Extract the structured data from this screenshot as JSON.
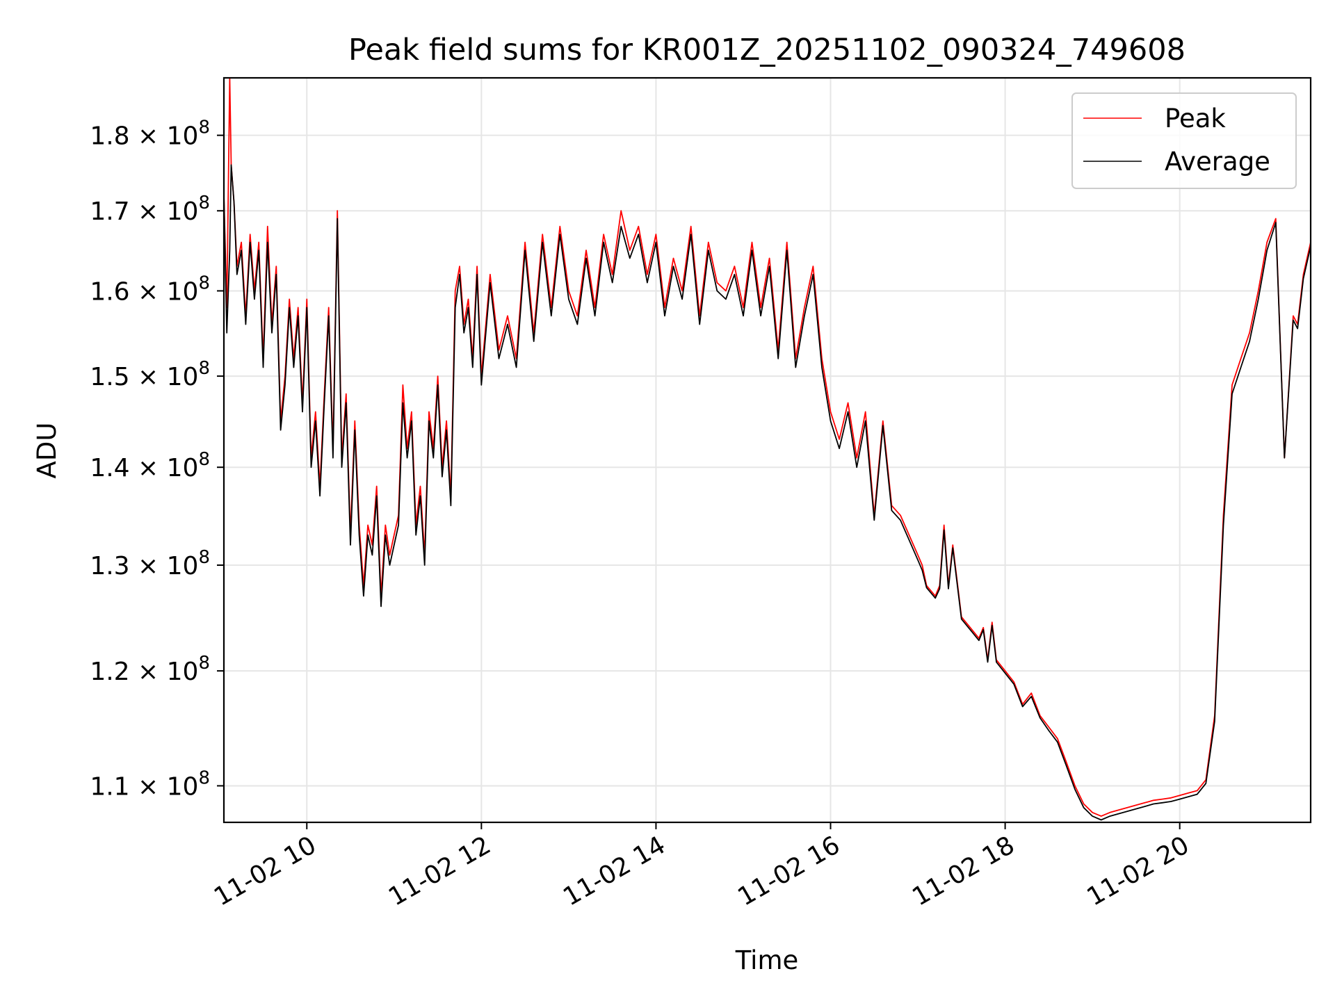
{
  "chart_data": {
    "type": "line",
    "title": "Peak field sums for KR001Z_20251102_090324_749608",
    "xlabel": "Time",
    "ylabel": "ADU",
    "y_scale": "log",
    "x_range": [
      "2025-11-02 09:03",
      "2025-11-02 21:30"
    ],
    "y_range": [
      107000000,
      188000000
    ],
    "grid": true,
    "legend_position": "upper right",
    "x_ticks": [
      {
        "value": "2025-11-02 10:00",
        "label": "11-02 10"
      },
      {
        "value": "2025-11-02 12:00",
        "label": "11-02 12"
      },
      {
        "value": "2025-11-02 14:00",
        "label": "11-02 14"
      },
      {
        "value": "2025-11-02 16:00",
        "label": "11-02 16"
      },
      {
        "value": "2025-11-02 18:00",
        "label": "11-02 18"
      },
      {
        "value": "2025-11-02 20:00",
        "label": "11-02 20"
      }
    ],
    "y_ticks": [
      {
        "value": 110000000,
        "mantissa": "1.1",
        "exponent": "8"
      },
      {
        "value": 120000000,
        "mantissa": "1.2",
        "exponent": "8"
      },
      {
        "value": 130000000,
        "mantissa": "1.3",
        "exponent": "8"
      },
      {
        "value": 140000000,
        "mantissa": "1.4",
        "exponent": "8"
      },
      {
        "value": 150000000,
        "mantissa": "1.5",
        "exponent": "8"
      },
      {
        "value": 160000000,
        "mantissa": "1.6",
        "exponent": "8"
      },
      {
        "value": 170000000,
        "mantissa": "1.7",
        "exponent": "8"
      },
      {
        "value": 180000000,
        "mantissa": "1.8",
        "exponent": "8"
      }
    ],
    "x": [
      "2025-11-02 09:03",
      "2025-11-02 09:05",
      "2025-11-02 09:07",
      "2025-11-02 09:08",
      "2025-11-02 09:10",
      "2025-11-02 09:12",
      "2025-11-02 09:15",
      "2025-11-02 09:18",
      "2025-11-02 09:21",
      "2025-11-02 09:24",
      "2025-11-02 09:27",
      "2025-11-02 09:30",
      "2025-11-02 09:33",
      "2025-11-02 09:36",
      "2025-11-02 09:39",
      "2025-11-02 09:42",
      "2025-11-02 09:45",
      "2025-11-02 09:48",
      "2025-11-02 09:51",
      "2025-11-02 09:54",
      "2025-11-02 09:57",
      "2025-11-02 10:00",
      "2025-11-02 10:03",
      "2025-11-02 10:06",
      "2025-11-02 10:09",
      "2025-11-02 10:12",
      "2025-11-02 10:15",
      "2025-11-02 10:18",
      "2025-11-02 10:21",
      "2025-11-02 10:24",
      "2025-11-02 10:27",
      "2025-11-02 10:30",
      "2025-11-02 10:33",
      "2025-11-02 10:36",
      "2025-11-02 10:39",
      "2025-11-02 10:42",
      "2025-11-02 10:45",
      "2025-11-02 10:48",
      "2025-11-02 10:51",
      "2025-11-02 10:54",
      "2025-11-02 10:57",
      "2025-11-02 11:00",
      "2025-11-02 11:03",
      "2025-11-02 11:06",
      "2025-11-02 11:09",
      "2025-11-02 11:12",
      "2025-11-02 11:15",
      "2025-11-02 11:18",
      "2025-11-02 11:21",
      "2025-11-02 11:24",
      "2025-11-02 11:27",
      "2025-11-02 11:30",
      "2025-11-02 11:33",
      "2025-11-02 11:36",
      "2025-11-02 11:39",
      "2025-11-02 11:42",
      "2025-11-02 11:45",
      "2025-11-02 11:48",
      "2025-11-02 11:51",
      "2025-11-02 11:54",
      "2025-11-02 11:57",
      "2025-11-02 12:00",
      "2025-11-02 12:06",
      "2025-11-02 12:12",
      "2025-11-02 12:18",
      "2025-11-02 12:24",
      "2025-11-02 12:30",
      "2025-11-02 12:36",
      "2025-11-02 12:42",
      "2025-11-02 12:48",
      "2025-11-02 12:54",
      "2025-11-02 13:00",
      "2025-11-02 13:06",
      "2025-11-02 13:12",
      "2025-11-02 13:18",
      "2025-11-02 13:24",
      "2025-11-02 13:30",
      "2025-11-02 13:36",
      "2025-11-02 13:42",
      "2025-11-02 13:48",
      "2025-11-02 13:54",
      "2025-11-02 14:00",
      "2025-11-02 14:06",
      "2025-11-02 14:12",
      "2025-11-02 14:18",
      "2025-11-02 14:24",
      "2025-11-02 14:30",
      "2025-11-02 14:36",
      "2025-11-02 14:42",
      "2025-11-02 14:48",
      "2025-11-02 14:54",
      "2025-11-02 15:00",
      "2025-11-02 15:06",
      "2025-11-02 15:12",
      "2025-11-02 15:18",
      "2025-11-02 15:24",
      "2025-11-02 15:30",
      "2025-11-02 15:36",
      "2025-11-02 15:42",
      "2025-11-02 15:48",
      "2025-11-02 15:54",
      "2025-11-02 16:00",
      "2025-11-02 16:06",
      "2025-11-02 16:12",
      "2025-11-02 16:18",
      "2025-11-02 16:24",
      "2025-11-02 16:30",
      "2025-11-02 16:36",
      "2025-11-02 16:42",
      "2025-11-02 16:48",
      "2025-11-02 16:54",
      "2025-11-02 17:00",
      "2025-11-02 17:03",
      "2025-11-02 17:06",
      "2025-11-02 17:09",
      "2025-11-02 17:12",
      "2025-11-02 17:15",
      "2025-11-02 17:18",
      "2025-11-02 17:21",
      "2025-11-02 17:24",
      "2025-11-02 17:30",
      "2025-11-02 17:36",
      "2025-11-02 17:42",
      "2025-11-02 17:45",
      "2025-11-02 17:48",
      "2025-11-02 17:51",
      "2025-11-02 17:54",
      "2025-11-02 18:00",
      "2025-11-02 18:06",
      "2025-11-02 18:12",
      "2025-11-02 18:18",
      "2025-11-02 18:24",
      "2025-11-02 18:30",
      "2025-11-02 18:36",
      "2025-11-02 18:42",
      "2025-11-02 18:48",
      "2025-11-02 18:54",
      "2025-11-02 19:00",
      "2025-11-02 19:06",
      "2025-11-02 19:12",
      "2025-11-02 19:18",
      "2025-11-02 19:24",
      "2025-11-02 19:30",
      "2025-11-02 19:36",
      "2025-11-02 19:42",
      "2025-11-02 19:48",
      "2025-11-02 19:54",
      "2025-11-02 20:00",
      "2025-11-02 20:06",
      "2025-11-02 20:12",
      "2025-11-02 20:18",
      "2025-11-02 20:24",
      "2025-11-02 20:30",
      "2025-11-02 20:36",
      "2025-11-02 20:42",
      "2025-11-02 20:48",
      "2025-11-02 20:54",
      "2025-11-02 21:00",
      "2025-11-02 21:06",
      "2025-11-02 21:12",
      "2025-11-02 21:18",
      "2025-11-02 21:21",
      "2025-11-02 21:23",
      "2025-11-02 21:25",
      "2025-11-02 21:30"
    ],
    "series": [
      {
        "name": "Peak",
        "color": "#ff0000",
        "values": [
          172000000,
          158000000,
          188000000,
          176000000,
          171000000,
          163000000,
          166000000,
          157000000,
          167000000,
          160000000,
          166000000,
          152000000,
          168000000,
          156000000,
          163000000,
          145000000,
          150000000,
          159000000,
          152000000,
          158000000,
          147000000,
          159000000,
          141000000,
          146000000,
          138000000,
          148000000,
          158000000,
          142000000,
          170000000,
          141000000,
          148000000,
          133000000,
          145000000,
          134000000,
          128000000,
          134000000,
          132000000,
          138000000,
          127000000,
          134000000,
          131000000,
          133000000,
          135000000,
          149000000,
          142000000,
          146000000,
          134000000,
          138000000,
          131000000,
          146000000,
          142000000,
          150000000,
          140000000,
          145000000,
          137000000,
          160000000,
          163000000,
          156000000,
          159000000,
          152000000,
          163000000,
          150000000,
          162000000,
          153000000,
          157000000,
          152000000,
          166000000,
          155000000,
          167000000,
          158000000,
          168000000,
          160000000,
          157000000,
          165000000,
          158000000,
          167000000,
          162000000,
          170000000,
          165000000,
          168000000,
          162000000,
          167000000,
          158000000,
          164000000,
          160000000,
          168000000,
          157000000,
          166000000,
          161000000,
          160000000,
          163000000,
          158000000,
          166000000,
          158000000,
          164000000,
          153000000,
          166000000,
          152000000,
          158000000,
          163000000,
          152000000,
          146000000,
          143000000,
          147000000,
          141000000,
          146000000,
          135000000,
          145000000,
          136000000,
          135000000,
          133000000,
          131000000,
          130000000,
          128000000,
          127500000,
          127000000,
          128000000,
          134000000,
          128000000,
          132000000,
          125000000,
          124000000,
          123000000,
          124000000,
          121000000,
          124500000,
          121000000,
          120000000,
          119000000,
          117000000,
          118000000,
          116000000,
          115000000,
          114000000,
          112000000,
          110000000,
          108500000,
          107800000,
          107500000,
          107800000,
          108000000,
          108200000,
          108400000,
          108600000,
          108800000,
          108900000,
          109000000,
          109200000,
          109400000,
          109600000,
          110500000,
          116000000,
          135000000,
          149000000,
          152000000,
          155000000,
          160000000,
          166000000,
          169000000,
          141000000,
          157000000,
          156000000,
          159000000,
          162000000,
          166000000
        ]
      },
      {
        "name": "Average",
        "color": "#000000",
        "values": [
          172000000,
          155000000,
          165000000,
          176000000,
          171000000,
          162000000,
          165000000,
          156000000,
          166000000,
          159000000,
          165000000,
          151000000,
          166000000,
          155000000,
          162000000,
          144000000,
          149000000,
          158000000,
          151000000,
          157000000,
          146000000,
          158000000,
          140000000,
          145000000,
          137000000,
          147000000,
          157000000,
          141000000,
          169000000,
          140000000,
          147000000,
          132000000,
          144000000,
          133000000,
          127000000,
          133000000,
          131000000,
          137000000,
          126000000,
          133000000,
          130000000,
          132000000,
          134000000,
          147000000,
          141000000,
          145000000,
          133000000,
          137000000,
          130000000,
          145000000,
          141000000,
          149000000,
          139000000,
          144000000,
          136000000,
          158000000,
          162000000,
          155000000,
          158000000,
          151000000,
          162000000,
          149000000,
          161000000,
          152000000,
          156000000,
          151000000,
          165000000,
          154000000,
          166000000,
          157000000,
          167000000,
          159000000,
          156000000,
          164000000,
          157000000,
          166000000,
          161000000,
          168000000,
          164000000,
          167000000,
          161000000,
          166000000,
          157000000,
          163000000,
          159000000,
          167000000,
          156000000,
          165000000,
          160000000,
          159000000,
          162000000,
          157000000,
          165000000,
          157000000,
          163000000,
          152000000,
          165000000,
          151000000,
          157000000,
          162000000,
          151000000,
          145000000,
          142000000,
          146000000,
          140000000,
          145000000,
          134500000,
          144500000,
          135500000,
          134500000,
          132500000,
          130500000,
          129500000,
          127800000,
          127300000,
          126800000,
          127700000,
          133500000,
          127700000,
          131700000,
          124800000,
          123800000,
          122800000,
          123800000,
          120800000,
          124200000,
          120800000,
          119800000,
          118800000,
          116800000,
          117700000,
          115800000,
          114700000,
          113700000,
          111700000,
          109700000,
          108200000,
          107500000,
          107200000,
          107500000,
          107700000,
          107900000,
          108100000,
          108300000,
          108500000,
          108600000,
          108700000,
          108900000,
          109100000,
          109300000,
          110200000,
          115500000,
          134000000,
          148000000,
          151000000,
          154000000,
          159000000,
          165000000,
          168500000,
          141000000,
          156500000,
          155500000,
          158500000,
          161500000,
          165500000
        ]
      }
    ]
  }
}
